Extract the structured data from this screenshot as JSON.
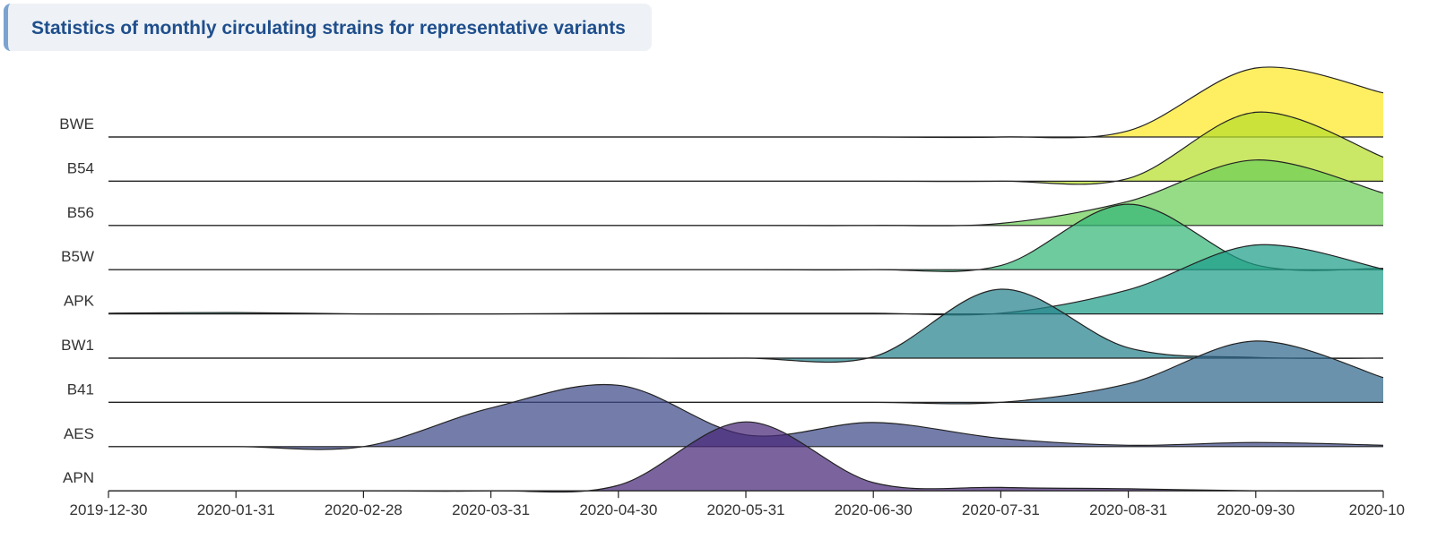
{
  "header": {
    "title": "Statistics of monthly circulating strains for representative variants"
  },
  "chart_data": {
    "type": "area",
    "subtype": "ridgeline",
    "title": "Statistics of monthly circulating strains for representative variants",
    "x": [
      "2019-12-30",
      "2020-01-31",
      "2020-02-28",
      "2020-03-31",
      "2020-04-30",
      "2020-05-31",
      "2020-06-30",
      "2020-07-31",
      "2020-08-31",
      "2020-09-30",
      "2020-10"
    ],
    "series": [
      {
        "name": "BWE",
        "color": "#fde725",
        "values": [
          0,
          0,
          0,
          0,
          0,
          0,
          0,
          0,
          0.09,
          1.0,
          0.64
        ]
      },
      {
        "name": "B54",
        "color": "#b5de2b",
        "values": [
          0,
          0,
          0,
          0,
          0,
          0,
          0,
          0,
          0.04,
          1.0,
          0.35
        ]
      },
      {
        "name": "B56",
        "color": "#6ece58",
        "values": [
          0,
          0,
          0,
          0,
          0,
          0,
          0,
          0.03,
          0.35,
          0.95,
          0.47
        ]
      },
      {
        "name": "B5W",
        "color": "#35b779",
        "values": [
          0,
          0,
          0,
          0,
          0,
          0,
          0,
          0.06,
          0.95,
          0.07,
          0.02
        ]
      },
      {
        "name": "APK",
        "color": "#1f9e89",
        "values": [
          0.01,
          0.02,
          0,
          0,
          0.01,
          0.01,
          0.01,
          0.01,
          0.35,
          1.0,
          0.65
        ]
      },
      {
        "name": "BW1",
        "color": "#26828e",
        "values": [
          0,
          0,
          0,
          0,
          0,
          0,
          0.02,
          1.0,
          0.15,
          0.01,
          0
        ]
      },
      {
        "name": "B41",
        "color": "#31688e",
        "values": [
          0,
          0,
          0,
          0,
          0,
          0,
          0,
          0,
          0.27,
          0.89,
          0.36
        ]
      },
      {
        "name": "AES",
        "color": "#3e4989",
        "values": [
          0,
          0,
          0,
          0.56,
          0.89,
          0.17,
          0.35,
          0.12,
          0.02,
          0.06,
          0.02
        ]
      },
      {
        "name": "APN",
        "color": "#482878",
        "values": [
          0,
          0,
          0,
          0,
          0.08,
          1.0,
          0.12,
          0.05,
          0.03,
          0,
          0
        ]
      }
    ],
    "xlabel": "",
    "ylabel": "",
    "grid": false,
    "legend": "none"
  }
}
